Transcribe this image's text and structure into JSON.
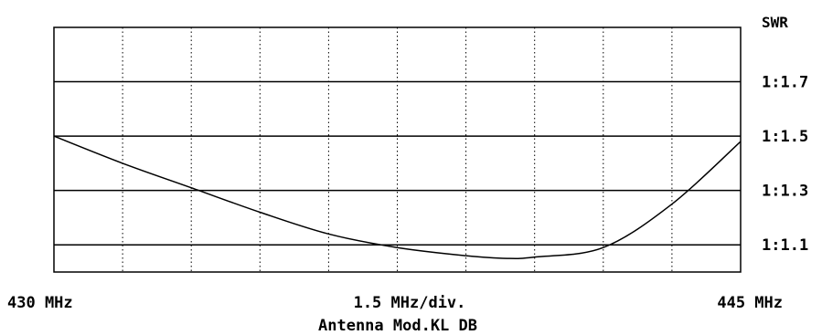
{
  "chart_data": {
    "type": "line",
    "ylabel": "SWR",
    "x_start_label": "430 MHz",
    "x_div_label": "1.5 MHz/div.",
    "x_end_label": "445 MHz",
    "caption": "Antenna Mod.KL DB",
    "xlim": [
      430,
      445
    ],
    "x_div_mhz": 1.5,
    "ylim": [
      1.0,
      1.9
    ],
    "grid": {
      "vertical_dotted": true,
      "horizontal_reference_lines": true
    },
    "reference_lines": [
      {
        "value": 1.7,
        "label": "1:1.7"
      },
      {
        "value": 1.5,
        "label": "1:1.5"
      },
      {
        "value": 1.3,
        "label": "1:1.3"
      },
      {
        "value": 1.1,
        "label": "1:1.1"
      }
    ],
    "series": [
      {
        "x": [
          430.0,
          431.5,
          433.0,
          434.5,
          436.0,
          437.5,
          439.0,
          439.9,
          440.5,
          442.0,
          443.5,
          445.0
        ],
        "y": [
          1.5,
          1.4,
          1.31,
          1.22,
          1.14,
          1.09,
          1.06,
          1.05,
          1.055,
          1.09,
          1.25,
          1.48
        ]
      }
    ],
    "line_color": "#000000"
  }
}
